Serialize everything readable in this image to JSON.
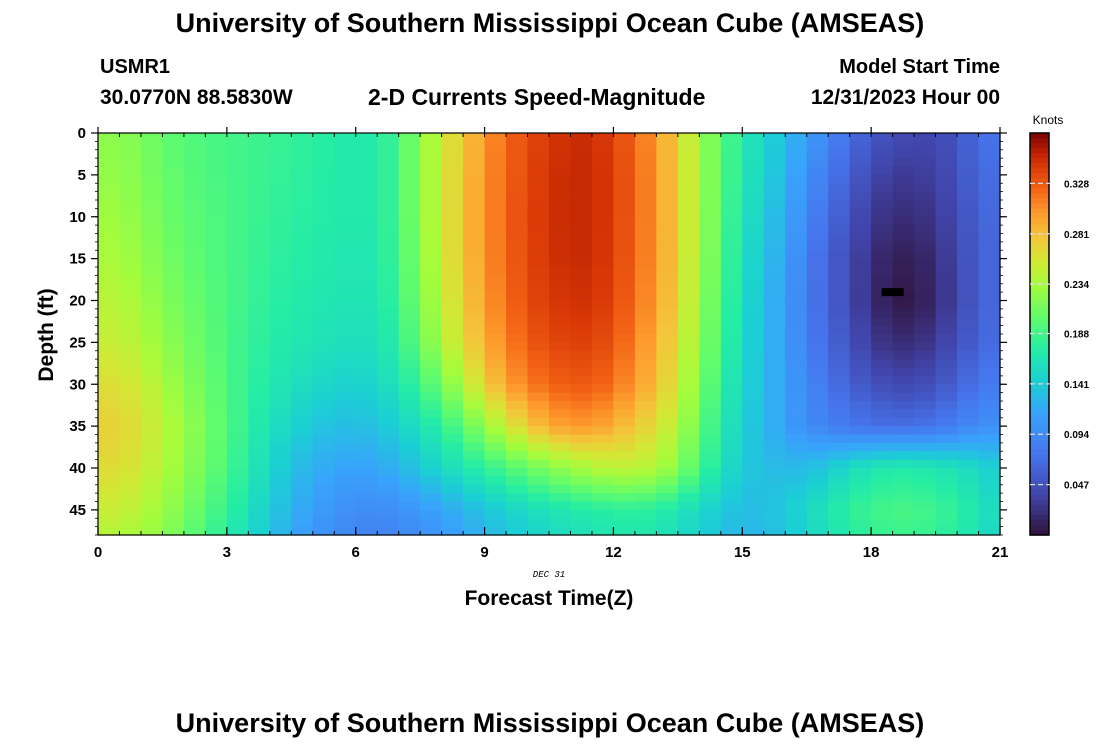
{
  "page": {
    "title_top": "University of Southern Mississippi Ocean Cube (AMSEAS)",
    "title_bottom": "University of Southern Mississippi Ocean Cube (AMSEAS)",
    "station_id": "USMR1",
    "station_coords": "30.0770N  88.5830W",
    "model_start_label": "Model Start Time",
    "model_start_value": "12/31/2023 Hour 00"
  },
  "chart_data": {
    "type": "heatmap",
    "title": "2-D Currents Speed-Magnitude",
    "xlabel": "Forecast Time(Z)",
    "ylabel": "Depth (ft)",
    "date_label": "DEC  31",
    "colorbar_label": "Knots",
    "xlim": [
      0,
      21
    ],
    "ylim": [
      48,
      0
    ],
    "xticks": [
      0,
      3,
      6,
      9,
      12,
      15,
      18,
      21
    ],
    "yticks": [
      0,
      5,
      10,
      15,
      20,
      25,
      30,
      35,
      40,
      45
    ],
    "colorbar_range": [
      0,
      0.375
    ],
    "colorbar_ticks": [
      "0.328",
      "0.281",
      "0.234",
      "0.188",
      "0.141",
      "0.094",
      "0.047"
    ],
    "colorbar_tick_values": [
      0.328,
      0.281,
      0.234,
      0.188,
      0.141,
      0.094,
      0.047
    ],
    "grid": {
      "times": [
        0,
        0.5,
        1,
        1.5,
        2,
        2.5,
        3,
        3.5,
        4,
        4.5,
        5,
        5.5,
        6,
        6.5,
        7,
        7.5,
        8,
        8.5,
        9,
        9.5,
        10,
        10.5,
        11,
        11.5,
        12,
        12.5,
        13,
        13.5,
        14,
        14.5,
        15,
        15.5,
        16,
        16.5,
        17,
        17.5,
        18,
        18.5,
        19,
        19.5,
        20,
        20.5,
        21
      ],
      "depths": [
        0,
        5,
        10,
        15,
        20,
        25,
        30,
        35,
        40,
        45,
        48
      ],
      "note": "rows = depths, columns = times, values in knots",
      "values": [
        [
          0.222,
          0.222,
          0.214,
          0.204,
          0.196,
          0.192,
          0.188,
          0.186,
          0.183,
          0.18,
          0.176,
          0.172,
          0.168,
          0.17,
          0.19,
          0.22,
          0.25,
          0.275,
          0.3,
          0.32,
          0.335,
          0.345,
          0.35,
          0.35,
          0.34,
          0.32,
          0.3,
          0.27,
          0.23,
          0.2,
          0.17,
          0.15,
          0.13,
          0.11,
          0.09,
          0.07,
          0.055,
          0.045,
          0.04,
          0.04,
          0.05,
          0.07,
          0.075
        ],
        [
          0.225,
          0.225,
          0.216,
          0.206,
          0.198,
          0.194,
          0.189,
          0.186,
          0.182,
          0.179,
          0.175,
          0.171,
          0.168,
          0.17,
          0.19,
          0.22,
          0.252,
          0.278,
          0.302,
          0.322,
          0.337,
          0.347,
          0.352,
          0.352,
          0.342,
          0.322,
          0.302,
          0.272,
          0.232,
          0.2,
          0.168,
          0.148,
          0.125,
          0.1,
          0.078,
          0.06,
          0.04,
          0.03,
          0.03,
          0.035,
          0.047,
          0.065,
          0.072
        ],
        [
          0.23,
          0.23,
          0.22,
          0.21,
          0.2,
          0.196,
          0.19,
          0.186,
          0.18,
          0.177,
          0.173,
          0.17,
          0.168,
          0.17,
          0.19,
          0.22,
          0.252,
          0.278,
          0.303,
          0.323,
          0.338,
          0.348,
          0.352,
          0.352,
          0.342,
          0.322,
          0.302,
          0.272,
          0.232,
          0.198,
          0.164,
          0.142,
          0.118,
          0.09,
          0.068,
          0.05,
          0.03,
          0.02,
          0.02,
          0.028,
          0.043,
          0.06,
          0.07
        ],
        [
          0.235,
          0.235,
          0.224,
          0.214,
          0.203,
          0.197,
          0.19,
          0.185,
          0.178,
          0.175,
          0.171,
          0.168,
          0.165,
          0.168,
          0.188,
          0.218,
          0.25,
          0.277,
          0.302,
          0.322,
          0.337,
          0.347,
          0.351,
          0.351,
          0.341,
          0.321,
          0.301,
          0.271,
          0.231,
          0.196,
          0.16,
          0.136,
          0.112,
          0.084,
          0.06,
          0.042,
          0.022,
          0.01,
          0.01,
          0.02,
          0.04,
          0.058,
          0.068
        ],
        [
          0.242,
          0.242,
          0.23,
          0.22,
          0.208,
          0.2,
          0.19,
          0.184,
          0.176,
          0.172,
          0.168,
          0.165,
          0.162,
          0.165,
          0.185,
          0.213,
          0.245,
          0.272,
          0.298,
          0.318,
          0.334,
          0.344,
          0.348,
          0.348,
          0.338,
          0.318,
          0.298,
          0.268,
          0.228,
          0.192,
          0.157,
          0.132,
          0.108,
          0.082,
          0.06,
          0.042,
          0.02,
          0.005,
          0.005,
          0.018,
          0.038,
          0.058,
          0.068
        ],
        [
          0.25,
          0.25,
          0.238,
          0.226,
          0.213,
          0.203,
          0.19,
          0.182,
          0.173,
          0.168,
          0.163,
          0.16,
          0.157,
          0.16,
          0.178,
          0.205,
          0.236,
          0.264,
          0.29,
          0.31,
          0.326,
          0.336,
          0.34,
          0.34,
          0.33,
          0.31,
          0.29,
          0.262,
          0.223,
          0.188,
          0.154,
          0.13,
          0.108,
          0.085,
          0.065,
          0.048,
          0.03,
          0.02,
          0.02,
          0.03,
          0.045,
          0.062,
          0.072
        ],
        [
          0.262,
          0.262,
          0.25,
          0.236,
          0.22,
          0.207,
          0.192,
          0.18,
          0.168,
          0.16,
          0.152,
          0.148,
          0.145,
          0.15,
          0.165,
          0.185,
          0.21,
          0.24,
          0.27,
          0.295,
          0.312,
          0.322,
          0.328,
          0.328,
          0.318,
          0.3,
          0.282,
          0.254,
          0.216,
          0.18,
          0.15,
          0.13,
          0.11,
          0.092,
          0.075,
          0.06,
          0.048,
          0.04,
          0.04,
          0.048,
          0.06,
          0.075,
          0.082
        ],
        [
          0.27,
          0.27,
          0.258,
          0.244,
          0.228,
          0.212,
          0.194,
          0.178,
          0.16,
          0.148,
          0.138,
          0.132,
          0.13,
          0.135,
          0.145,
          0.16,
          0.178,
          0.2,
          0.225,
          0.25,
          0.275,
          0.292,
          0.3,
          0.3,
          0.29,
          0.276,
          0.262,
          0.24,
          0.205,
          0.172,
          0.145,
          0.128,
          0.11,
          0.096,
          0.085,
          0.078,
          0.072,
          0.07,
          0.07,
          0.076,
          0.085,
          0.095,
          0.1
        ],
        [
          0.264,
          0.264,
          0.252,
          0.24,
          0.224,
          0.208,
          0.19,
          0.172,
          0.15,
          0.134,
          0.122,
          0.115,
          0.112,
          0.115,
          0.125,
          0.138,
          0.152,
          0.165,
          0.178,
          0.192,
          0.205,
          0.218,
          0.228,
          0.238,
          0.244,
          0.246,
          0.238,
          0.22,
          0.19,
          0.162,
          0.14,
          0.132,
          0.128,
          0.13,
          0.14,
          0.155,
          0.165,
          0.17,
          0.17,
          0.165,
          0.16,
          0.15,
          0.14
        ],
        [
          0.25,
          0.25,
          0.24,
          0.23,
          0.214,
          0.198,
          0.18,
          0.162,
          0.14,
          0.124,
          0.11,
          0.1,
          0.095,
          0.094,
          0.098,
          0.105,
          0.115,
          0.125,
          0.135,
          0.145,
          0.155,
          0.162,
          0.168,
          0.172,
          0.176,
          0.178,
          0.174,
          0.165,
          0.152,
          0.14,
          0.13,
          0.132,
          0.14,
          0.152,
          0.165,
          0.178,
          0.186,
          0.19,
          0.19,
          0.185,
          0.178,
          0.165,
          0.15
        ],
        [
          0.24,
          0.24,
          0.232,
          0.222,
          0.206,
          0.19,
          0.172,
          0.155,
          0.134,
          0.118,
          0.104,
          0.094,
          0.088,
          0.086,
          0.09,
          0.096,
          0.105,
          0.115,
          0.125,
          0.135,
          0.145,
          0.152,
          0.158,
          0.162,
          0.166,
          0.168,
          0.164,
          0.156,
          0.144,
          0.134,
          0.126,
          0.128,
          0.136,
          0.148,
          0.16,
          0.172,
          0.18,
          0.184,
          0.184,
          0.18,
          0.172,
          0.16,
          0.146
        ]
      ]
    },
    "marker": {
      "type": "minimum-marker",
      "x": 18.5,
      "depth": 19
    }
  }
}
